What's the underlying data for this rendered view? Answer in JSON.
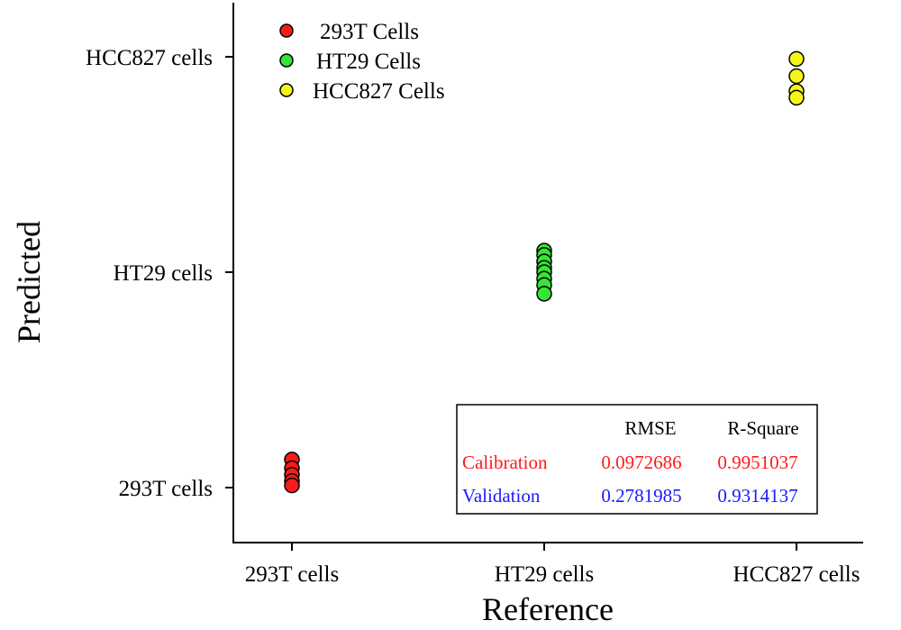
{
  "chart_data": {
    "type": "scatter",
    "xlabel": "Reference",
    "ylabel": "Predicted",
    "x_categories": [
      "293T cells",
      "HT29 cells",
      "HCC827 cells"
    ],
    "y_categories": [
      "293T cells",
      "HT29 cells",
      "HCC827 cells"
    ],
    "grid": false,
    "legend_position": "top-left",
    "series": [
      {
        "name": "293T Cells",
        "color": "#ff1a1a",
        "x": [
          "293T cells",
          "293T cells",
          "293T cells",
          "293T cells",
          "293T cells"
        ],
        "y": [
          1.13,
          1.09,
          1.06,
          1.03,
          1.01
        ]
      },
      {
        "name": "HT29 Cells",
        "color": "#33e633",
        "x": [
          "HT29 cells",
          "HT29 cells",
          "HT29 cells",
          "HT29 cells",
          "HT29 cells",
          "HT29 cells",
          "HT29 cells",
          "HT29 cells"
        ],
        "y": [
          2.1,
          2.08,
          2.05,
          2.02,
          2.0,
          1.97,
          1.94,
          1.9
        ]
      },
      {
        "name": "HCC827 Cells",
        "color": "#f5f51a",
        "x": [
          "HCC827 cells",
          "HCC827 cells",
          "HCC827 cells",
          "HCC827 cells"
        ],
        "y": [
          2.99,
          2.91,
          2.84,
          2.81
        ]
      }
    ],
    "stats_table": {
      "headers": [
        "",
        "RMSE",
        "R-Square"
      ],
      "rows": [
        {
          "label": "Calibration",
          "rmse": "0.0972686",
          "rsquare": "0.9951037",
          "color": "#ff1a1a"
        },
        {
          "label": "Validation",
          "rmse": "0.2781985",
          "rsquare": "0.9314137",
          "color": "#1a1aff"
        }
      ]
    }
  }
}
